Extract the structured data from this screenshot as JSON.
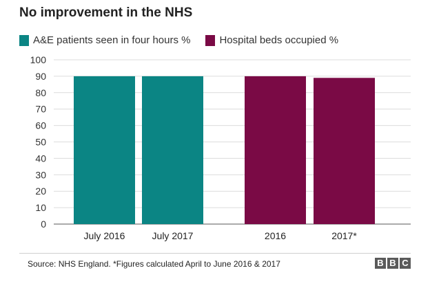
{
  "colors": {
    "teal": "#0b8584",
    "maroon": "#7a0a45"
  },
  "chart_data": {
    "type": "bar",
    "title": "No improvement in the NHS",
    "ylim": [
      0,
      100
    ],
    "yticks": [
      0,
      10,
      20,
      30,
      40,
      50,
      60,
      70,
      80,
      90,
      100
    ],
    "grid": true,
    "legend_position": "top-left",
    "series": [
      {
        "name": "A&E patients seen in four hours %",
        "color": "#0b8584",
        "categories": [
          "July 2016",
          "July 2017"
        ],
        "values": [
          90,
          90
        ]
      },
      {
        "name": "Hospital beds occupied %",
        "color": "#7a0a45",
        "categories": [
          "2016",
          "2017*"
        ],
        "values": [
          90,
          89
        ]
      }
    ]
  },
  "footer": {
    "source": "Source: NHS England. *Figures calculated April to June 2016 & 2017",
    "logo_letters": [
      "B",
      "B",
      "C"
    ]
  }
}
